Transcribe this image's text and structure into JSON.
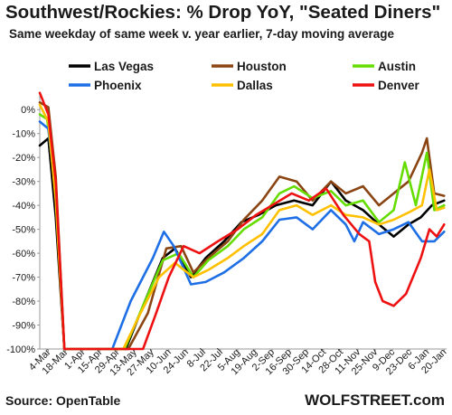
{
  "chart_data": {
    "type": "line",
    "title": "Southwest/Rockies: % Drop YoY, \"Seated Diners\"",
    "subtitle": "Same weekday of same week v. year earlier, 7-day moving average",
    "source": "Source: OpenTable",
    "brand": "WOLFSTREET.com",
    "ylim": [
      -100,
      5
    ],
    "yticks": [
      {
        "value": 0,
        "label": "0%"
      },
      {
        "value": -10,
        "label": "-10%"
      },
      {
        "value": -20,
        "label": "-20%"
      },
      {
        "value": -30,
        "label": "-30%"
      },
      {
        "value": -40,
        "label": "-40%"
      },
      {
        "value": -50,
        "label": "-50%"
      },
      {
        "value": -60,
        "label": "-60%"
      },
      {
        "value": -70,
        "label": "-70%"
      },
      {
        "value": -80,
        "label": "-80%"
      },
      {
        "value": -90,
        "label": "-90%"
      },
      {
        "value": -100,
        "label": "-100%"
      }
    ],
    "xlim": [
      "2020-02-26",
      "2021-01-22"
    ],
    "xticks": [
      {
        "date": "2020-03-04",
        "label": "4-Mar"
      },
      {
        "date": "2020-03-18",
        "label": "18-Mar"
      },
      {
        "date": "2020-04-01",
        "label": "1-Apr"
      },
      {
        "date": "2020-04-15",
        "label": "15-Apr"
      },
      {
        "date": "2020-04-29",
        "label": "29-Apr"
      },
      {
        "date": "2020-05-13",
        "label": "13-May"
      },
      {
        "date": "2020-05-27",
        "label": "27-May"
      },
      {
        "date": "2020-06-10",
        "label": "10-Jun"
      },
      {
        "date": "2020-06-24",
        "label": "24-Jun"
      },
      {
        "date": "2020-07-08",
        "label": "8-Jul"
      },
      {
        "date": "2020-07-22",
        "label": "22-Jul"
      },
      {
        "date": "2020-08-05",
        "label": "5-Aug"
      },
      {
        "date": "2020-08-19",
        "label": "19-Aug"
      },
      {
        "date": "2020-09-02",
        "label": "2-Sep"
      },
      {
        "date": "2020-09-16",
        "label": "16-Sep"
      },
      {
        "date": "2020-09-30",
        "label": "30-Sep"
      },
      {
        "date": "2020-10-14",
        "label": "14-Oct"
      },
      {
        "date": "2020-10-28",
        "label": "28-Oct"
      },
      {
        "date": "2020-11-11",
        "label": "11-Nov"
      },
      {
        "date": "2020-11-25",
        "label": "25-Nov"
      },
      {
        "date": "2020-12-09",
        "label": "9-Dec"
      },
      {
        "date": "2020-12-23",
        "label": "23-Dec"
      },
      {
        "date": "2021-01-06",
        "label": "6-Jan"
      },
      {
        "date": "2021-01-20",
        "label": "20-Jan"
      }
    ],
    "grid": false,
    "legend_position": "top",
    "series": [
      {
        "name": "Las Vegas",
        "color": "#000000",
        "points": [
          [
            "2020-02-26",
            -15
          ],
          [
            "2020-03-04",
            -12
          ],
          [
            "2020-03-10",
            -45
          ],
          [
            "2020-03-17",
            -100
          ],
          [
            "2020-05-06",
            -100
          ],
          [
            "2020-05-20",
            -82
          ],
          [
            "2020-06-05",
            -62
          ],
          [
            "2020-06-15",
            -58
          ],
          [
            "2020-06-28",
            -70
          ],
          [
            "2020-07-10",
            -62
          ],
          [
            "2020-07-25",
            -55
          ],
          [
            "2020-08-08",
            -47
          ],
          [
            "2020-08-22",
            -44
          ],
          [
            "2020-09-05",
            -40
          ],
          [
            "2020-09-20",
            -38
          ],
          [
            "2020-10-05",
            -40
          ],
          [
            "2020-10-20",
            -30
          ],
          [
            "2020-11-01",
            -38
          ],
          [
            "2020-11-15",
            -42
          ],
          [
            "2020-11-28",
            -48
          ],
          [
            "2020-12-10",
            -53
          ],
          [
            "2020-12-22",
            -48
          ],
          [
            "2021-01-01",
            -45
          ],
          [
            "2021-01-10",
            -40
          ],
          [
            "2021-01-20",
            -38
          ]
        ]
      },
      {
        "name": "Houston",
        "color": "#8B4513",
        "points": [
          [
            "2020-02-26",
            3
          ],
          [
            "2020-03-04",
            1
          ],
          [
            "2020-03-10",
            -28
          ],
          [
            "2020-03-17",
            -100
          ],
          [
            "2020-05-08",
            -100
          ],
          [
            "2020-05-24",
            -85
          ],
          [
            "2020-06-08",
            -58
          ],
          [
            "2020-06-20",
            -57
          ],
          [
            "2020-06-30",
            -68
          ],
          [
            "2020-07-12",
            -62
          ],
          [
            "2020-07-28",
            -55
          ],
          [
            "2020-08-10",
            -46
          ],
          [
            "2020-08-25",
            -38
          ],
          [
            "2020-09-08",
            -28
          ],
          [
            "2020-09-22",
            -30
          ],
          [
            "2020-10-05",
            -38
          ],
          [
            "2020-10-20",
            -30
          ],
          [
            "2020-11-01",
            -35
          ],
          [
            "2020-11-15",
            -32
          ],
          [
            "2020-11-28",
            -40
          ],
          [
            "2020-12-10",
            -35
          ],
          [
            "2020-12-22",
            -30
          ],
          [
            "2021-01-02",
            -18
          ],
          [
            "2021-01-06",
            -12
          ],
          [
            "2021-01-12",
            -35
          ],
          [
            "2021-01-20",
            -36
          ]
        ]
      },
      {
        "name": "Austin",
        "color": "#66DD00",
        "points": [
          [
            "2020-02-26",
            -2
          ],
          [
            "2020-03-03",
            -4
          ],
          [
            "2020-03-10",
            -35
          ],
          [
            "2020-03-17",
            -100
          ],
          [
            "2020-05-05",
            -100
          ],
          [
            "2020-05-20",
            -82
          ],
          [
            "2020-06-05",
            -63
          ],
          [
            "2020-06-18",
            -60
          ],
          [
            "2020-06-30",
            -70
          ],
          [
            "2020-07-12",
            -63
          ],
          [
            "2020-07-28",
            -57
          ],
          [
            "2020-08-10",
            -50
          ],
          [
            "2020-08-25",
            -45
          ],
          [
            "2020-09-08",
            -35
          ],
          [
            "2020-09-20",
            -32
          ],
          [
            "2020-10-05",
            -37
          ],
          [
            "2020-10-20",
            -34
          ],
          [
            "2020-11-01",
            -40
          ],
          [
            "2020-11-15",
            -38
          ],
          [
            "2020-11-28",
            -47
          ],
          [
            "2020-12-10",
            -42
          ],
          [
            "2020-12-19",
            -22
          ],
          [
            "2020-12-28",
            -40
          ],
          [
            "2021-01-06",
            -18
          ],
          [
            "2021-01-12",
            -42
          ],
          [
            "2021-01-20",
            -40
          ]
        ]
      },
      {
        "name": "Phoenix",
        "color": "#1E6FE6",
        "points": [
          [
            "2020-02-26",
            -5
          ],
          [
            "2020-03-04",
            -8
          ],
          [
            "2020-03-10",
            -35
          ],
          [
            "2020-03-17",
            -100
          ],
          [
            "2020-04-25",
            -100
          ],
          [
            "2020-05-10",
            -80
          ],
          [
            "2020-05-28",
            -62
          ],
          [
            "2020-06-06",
            -51
          ],
          [
            "2020-06-14",
            -57
          ],
          [
            "2020-06-28",
            -73
          ],
          [
            "2020-07-10",
            -72
          ],
          [
            "2020-07-25",
            -68
          ],
          [
            "2020-08-10",
            -62
          ],
          [
            "2020-08-25",
            -55
          ],
          [
            "2020-09-08",
            -46
          ],
          [
            "2020-09-22",
            -45
          ],
          [
            "2020-10-05",
            -50
          ],
          [
            "2020-10-20",
            -42
          ],
          [
            "2020-11-01",
            -48
          ],
          [
            "2020-11-08",
            -55
          ],
          [
            "2020-11-15",
            -47
          ],
          [
            "2020-11-28",
            -52
          ],
          [
            "2020-12-10",
            -50
          ],
          [
            "2020-12-22",
            -47
          ],
          [
            "2021-01-02",
            -55
          ],
          [
            "2021-01-12",
            -55
          ],
          [
            "2021-01-20",
            -51
          ]
        ]
      },
      {
        "name": "Dallas",
        "color": "#FFC000",
        "points": [
          [
            "2020-02-26",
            2
          ],
          [
            "2020-03-04",
            -5
          ],
          [
            "2020-03-10",
            -38
          ],
          [
            "2020-03-17",
            -100
          ],
          [
            "2020-05-04",
            -100
          ],
          [
            "2020-05-18",
            -85
          ],
          [
            "2020-06-02",
            -70
          ],
          [
            "2020-06-15",
            -64
          ],
          [
            "2020-06-30",
            -70
          ],
          [
            "2020-07-12",
            -67
          ],
          [
            "2020-07-28",
            -62
          ],
          [
            "2020-08-10",
            -57
          ],
          [
            "2020-08-25",
            -52
          ],
          [
            "2020-09-08",
            -42
          ],
          [
            "2020-09-22",
            -40
          ],
          [
            "2020-10-05",
            -44
          ],
          [
            "2020-10-20",
            -40
          ],
          [
            "2020-11-01",
            -44
          ],
          [
            "2020-11-15",
            -45
          ],
          [
            "2020-11-28",
            -48
          ],
          [
            "2020-12-10",
            -46
          ],
          [
            "2020-12-22",
            -43
          ],
          [
            "2021-01-02",
            -40
          ],
          [
            "2021-01-08",
            -25
          ],
          [
            "2021-01-14",
            -42
          ],
          [
            "2021-01-20",
            -41
          ]
        ]
      },
      {
        "name": "Denver",
        "color": "#EE1111",
        "points": [
          [
            "2020-02-26",
            7
          ],
          [
            "2020-03-04",
            -2
          ],
          [
            "2020-03-10",
            -30
          ],
          [
            "2020-03-17",
            -100
          ],
          [
            "2020-05-20",
            -100
          ],
          [
            "2020-05-30",
            -86
          ],
          [
            "2020-06-10",
            -70
          ],
          [
            "2020-06-22",
            -57
          ],
          [
            "2020-07-05",
            -60
          ],
          [
            "2020-07-20",
            -55
          ],
          [
            "2020-08-05",
            -50
          ],
          [
            "2020-08-20",
            -44
          ],
          [
            "2020-09-02",
            -40
          ],
          [
            "2020-09-18",
            -35
          ],
          [
            "2020-10-02",
            -38
          ],
          [
            "2020-10-16",
            -33
          ],
          [
            "2020-10-30",
            -44
          ],
          [
            "2020-11-12",
            -52
          ],
          [
            "2020-11-20",
            -55
          ],
          [
            "2020-11-25",
            -72
          ],
          [
            "2020-12-01",
            -80
          ],
          [
            "2020-12-10",
            -82
          ],
          [
            "2020-12-20",
            -77
          ],
          [
            "2021-01-01",
            -62
          ],
          [
            "2021-01-08",
            -50
          ],
          [
            "2021-01-14",
            -53
          ],
          [
            "2021-01-20",
            -48
          ]
        ]
      }
    ]
  }
}
